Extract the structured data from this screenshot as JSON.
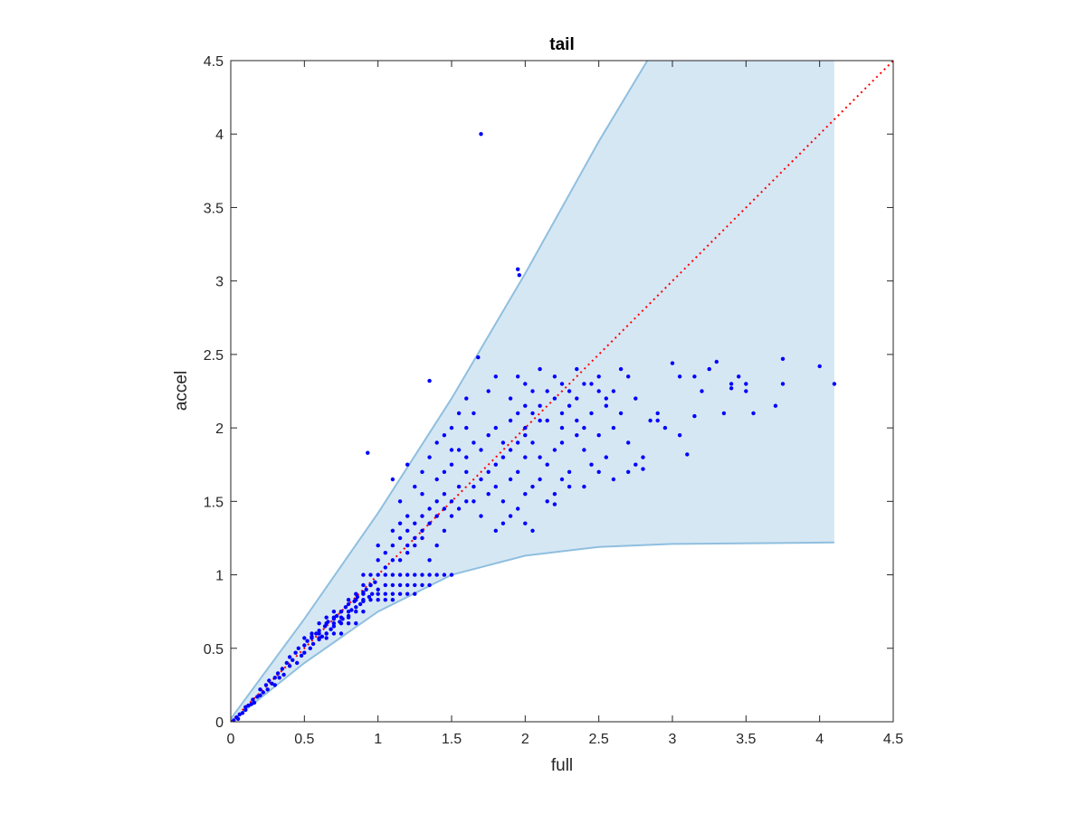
{
  "chart_data": {
    "type": "scatter",
    "title": "tail",
    "xlabel": "full",
    "ylabel": "accel",
    "xlim": [
      0,
      4.5
    ],
    "ylim": [
      0,
      4.5
    ],
    "xticks": [
      "0",
      "0.5",
      "1",
      "1.5",
      "2",
      "2.5",
      "3",
      "3.5",
      "4",
      "4.5"
    ],
    "yticks": [
      "0",
      "0.5",
      "1",
      "1.5",
      "2",
      "2.5",
      "3",
      "3.5",
      "4",
      "4.5"
    ],
    "grid": false,
    "colors": {
      "points": "#0000ff",
      "band_fill": "#d6e7f4",
      "band_edge": "#8fbfdf",
      "reference": "#ff0000",
      "axes": "#262626"
    },
    "reference_line": {
      "style": "dotted",
      "x": [
        0,
        4.5
      ],
      "y": [
        0,
        4.5
      ]
    },
    "band": {
      "upper": [
        [
          0,
          0.02
        ],
        [
          0.5,
          0.7
        ],
        [
          1,
          1.42
        ],
        [
          1.5,
          2.2
        ],
        [
          2,
          3.05
        ],
        [
          2.5,
          3.95
        ],
        [
          2.83,
          4.5
        ],
        [
          4.1,
          4.5
        ]
      ],
      "lower": [
        [
          0,
          0
        ],
        [
          0.5,
          0.4
        ],
        [
          1,
          0.75
        ],
        [
          1.5,
          1.0
        ],
        [
          2,
          1.13
        ],
        [
          2.5,
          1.19
        ],
        [
          3,
          1.21
        ],
        [
          4.1,
          1.22
        ]
      ]
    },
    "points": [
      [
        0.02,
        0.01
      ],
      [
        0.04,
        0.03
      ],
      [
        0.05,
        0.02
      ],
      [
        0.06,
        0.05
      ],
      [
        0.08,
        0.06
      ],
      [
        0.1,
        0.08
      ],
      [
        0.1,
        0.1
      ],
      [
        0.12,
        0.11
      ],
      [
        0.14,
        0.12
      ],
      [
        0.15,
        0.15
      ],
      [
        0.16,
        0.13
      ],
      [
        0.18,
        0.17
      ],
      [
        0.2,
        0.18
      ],
      [
        0.2,
        0.22
      ],
      [
        0.22,
        0.2
      ],
      [
        0.24,
        0.25
      ],
      [
        0.25,
        0.22
      ],
      [
        0.26,
        0.28
      ],
      [
        0.28,
        0.26
      ],
      [
        0.3,
        0.3
      ],
      [
        0.3,
        0.25
      ],
      [
        0.32,
        0.33
      ],
      [
        0.33,
        0.3
      ],
      [
        0.35,
        0.36
      ],
      [
        0.36,
        0.32
      ],
      [
        0.38,
        0.4
      ],
      [
        0.4,
        0.38
      ],
      [
        0.4,
        0.44
      ],
      [
        0.42,
        0.42
      ],
      [
        0.44,
        0.47
      ],
      [
        0.45,
        0.4
      ],
      [
        0.46,
        0.5
      ],
      [
        0.48,
        0.45
      ],
      [
        0.5,
        0.52
      ],
      [
        0.5,
        0.47
      ],
      [
        0.52,
        0.55
      ],
      [
        0.54,
        0.5
      ],
      [
        0.55,
        0.58
      ],
      [
        0.56,
        0.53
      ],
      [
        0.58,
        0.6
      ],
      [
        0.6,
        0.56
      ],
      [
        0.6,
        0.62
      ],
      [
        0.62,
        0.58
      ],
      [
        0.64,
        0.65
      ],
      [
        0.65,
        0.6
      ],
      [
        0.66,
        0.68
      ],
      [
        0.68,
        0.63
      ],
      [
        0.7,
        0.7
      ],
      [
        0.7,
        0.65
      ],
      [
        0.72,
        0.72
      ],
      [
        0.74,
        0.68
      ],
      [
        0.75,
        0.75
      ],
      [
        0.76,
        0.7
      ],
      [
        0.78,
        0.78
      ],
      [
        0.8,
        0.72
      ],
      [
        0.8,
        0.8
      ],
      [
        0.82,
        0.76
      ],
      [
        0.84,
        0.82
      ],
      [
        0.85,
        0.78
      ],
      [
        0.86,
        0.85
      ],
      [
        0.88,
        0.8
      ],
      [
        0.9,
        0.88
      ],
      [
        0.9,
        0.82
      ],
      [
        0.92,
        0.9
      ],
      [
        0.94,
        0.85
      ],
      [
        0.95,
        0.93
      ],
      [
        0.96,
        0.87
      ],
      [
        0.98,
        0.95
      ],
      [
        1.0,
        0.9
      ],
      [
        1.0,
        1.0
      ],
      [
        0.9,
        0.93
      ],
      [
        0.95,
        0.93
      ],
      [
        1.05,
        0.93
      ],
      [
        1.1,
        0.93
      ],
      [
        1.15,
        0.93
      ],
      [
        1.2,
        0.93
      ],
      [
        1.25,
        0.93
      ],
      [
        1.3,
        0.93
      ],
      [
        1.35,
        0.93
      ],
      [
        0.85,
        0.87
      ],
      [
        0.9,
        0.87
      ],
      [
        1.0,
        0.87
      ],
      [
        1.05,
        0.87
      ],
      [
        1.1,
        0.87
      ],
      [
        1.15,
        0.87
      ],
      [
        1.2,
        0.87
      ],
      [
        1.25,
        0.87
      ],
      [
        0.8,
        0.83
      ],
      [
        0.85,
        0.83
      ],
      [
        0.9,
        0.83
      ],
      [
        0.95,
        0.83
      ],
      [
        1.0,
        0.83
      ],
      [
        1.05,
        0.83
      ],
      [
        1.1,
        0.83
      ],
      [
        0.9,
        1.0
      ],
      [
        0.95,
        1.0
      ],
      [
        1.05,
        1.0
      ],
      [
        1.1,
        1.0
      ],
      [
        1.15,
        1.0
      ],
      [
        1.2,
        1.0
      ],
      [
        1.25,
        1.0
      ],
      [
        1.3,
        1.0
      ],
      [
        1.35,
        1.0
      ],
      [
        1.4,
        1.0
      ],
      [
        1.45,
        1.0
      ],
      [
        1.5,
        1.0
      ],
      [
        0.6,
        0.67
      ],
      [
        0.65,
        0.67
      ],
      [
        0.7,
        0.67
      ],
      [
        0.75,
        0.67
      ],
      [
        0.8,
        0.67
      ],
      [
        0.85,
        0.67
      ],
      [
        0.55,
        0.6
      ],
      [
        0.6,
        0.6
      ],
      [
        0.65,
        0.6
      ],
      [
        0.7,
        0.6
      ],
      [
        0.75,
        0.6
      ],
      [
        0.5,
        0.57
      ],
      [
        0.55,
        0.57
      ],
      [
        0.6,
        0.57
      ],
      [
        0.65,
        0.57
      ],
      [
        0.7,
        0.75
      ],
      [
        0.75,
        0.75
      ],
      [
        0.8,
        0.75
      ],
      [
        0.85,
        0.75
      ],
      [
        0.9,
        0.75
      ],
      [
        0.65,
        0.71
      ],
      [
        0.7,
        0.71
      ],
      [
        0.75,
        0.71
      ],
      [
        0.8,
        0.71
      ],
      [
        1.0,
        1.1
      ],
      [
        1.05,
        1.15
      ],
      [
        1.1,
        1.2
      ],
      [
        1.15,
        1.25
      ],
      [
        1.2,
        1.3
      ],
      [
        1.25,
        1.35
      ],
      [
        1.3,
        1.4
      ],
      [
        1.35,
        1.45
      ],
      [
        1.4,
        1.5
      ],
      [
        1.45,
        1.55
      ],
      [
        1.0,
        1.2
      ],
      [
        1.1,
        1.3
      ],
      [
        1.15,
        1.35
      ],
      [
        1.2,
        1.15
      ],
      [
        1.25,
        1.2
      ],
      [
        1.3,
        1.25
      ],
      [
        1.35,
        1.1
      ],
      [
        1.4,
        1.2
      ],
      [
        1.45,
        1.3
      ],
      [
        1.5,
        1.4
      ],
      [
        1.05,
        1.05
      ],
      [
        1.1,
        1.1
      ],
      [
        1.15,
        1.1
      ],
      [
        1.2,
        1.2
      ],
      [
        1.25,
        1.25
      ],
      [
        1.3,
        1.3
      ],
      [
        1.35,
        1.35
      ],
      [
        1.4,
        1.4
      ],
      [
        1.45,
        1.45
      ],
      [
        1.5,
        1.5
      ],
      [
        1.55,
        1.45
      ],
      [
        1.6,
        1.5
      ],
      [
        1.65,
        1.6
      ],
      [
        1.7,
        1.65
      ],
      [
        1.75,
        1.7
      ],
      [
        1.8,
        1.75
      ],
      [
        1.85,
        1.8
      ],
      [
        1.9,
        1.85
      ],
      [
        1.95,
        1.9
      ],
      [
        2.0,
        1.95
      ],
      [
        1.55,
        1.6
      ],
      [
        1.6,
        1.7
      ],
      [
        1.65,
        1.5
      ],
      [
        1.7,
        1.4
      ],
      [
        1.75,
        1.55
      ],
      [
        1.8,
        1.6
      ],
      [
        1.85,
        1.5
      ],
      [
        1.9,
        1.65
      ],
      [
        1.95,
        1.7
      ],
      [
        2.0,
        1.8
      ],
      [
        1.5,
        1.75
      ],
      [
        1.55,
        1.85
      ],
      [
        1.6,
        1.8
      ],
      [
        1.65,
        1.9
      ],
      [
        1.7,
        1.85
      ],
      [
        1.75,
        1.95
      ],
      [
        1.8,
        2.0
      ],
      [
        1.85,
        1.9
      ],
      [
        1.9,
        2.05
      ],
      [
        1.95,
        2.1
      ],
      [
        2.0,
        2.0
      ],
      [
        2.05,
        2.1
      ],
      [
        2.1,
        2.15
      ],
      [
        2.15,
        2.05
      ],
      [
        2.2,
        2.2
      ],
      [
        2.25,
        2.1
      ],
      [
        2.3,
        2.15
      ],
      [
        2.35,
        2.2
      ],
      [
        2.4,
        2.0
      ],
      [
        2.45,
        2.1
      ],
      [
        2.05,
        1.9
      ],
      [
        2.1,
        1.8
      ],
      [
        2.15,
        1.75
      ],
      [
        2.2,
        1.85
      ],
      [
        2.25,
        1.9
      ],
      [
        2.3,
        1.7
      ],
      [
        2.35,
        1.95
      ],
      [
        2.4,
        1.85
      ],
      [
        2.45,
        1.75
      ],
      [
        2.5,
        1.95
      ],
      [
        2.0,
        1.55
      ],
      [
        2.05,
        1.6
      ],
      [
        2.1,
        1.65
      ],
      [
        2.15,
        1.5
      ],
      [
        2.2,
        1.55
      ],
      [
        2.25,
        1.65
      ],
      [
        2.3,
        1.6
      ],
      [
        2.4,
        1.6
      ],
      [
        2.5,
        1.7
      ],
      [
        1.9,
        1.4
      ],
      [
        1.95,
        1.45
      ],
      [
        2.0,
        1.35
      ],
      [
        1.8,
        1.3
      ],
      [
        1.85,
        1.35
      ],
      [
        2.05,
        1.3
      ],
      [
        2.2,
        1.48
      ],
      [
        2.0,
        2.3
      ],
      [
        2.05,
        2.25
      ],
      [
        2.1,
        2.4
      ],
      [
        2.2,
        2.35
      ],
      [
        2.25,
        2.3
      ],
      [
        2.3,
        2.25
      ],
      [
        2.35,
        2.4
      ],
      [
        2.45,
        2.3
      ],
      [
        2.5,
        2.35
      ],
      [
        2.55,
        2.2
      ],
      [
        2.6,
        2.25
      ],
      [
        2.65,
        2.4
      ],
      [
        2.7,
        2.35
      ],
      [
        2.75,
        2.2
      ],
      [
        2.6,
        2.0
      ],
      [
        2.65,
        2.1
      ],
      [
        2.7,
        1.9
      ],
      [
        2.75,
        1.75
      ],
      [
        2.8,
        1.8
      ],
      [
        2.55,
        1.8
      ],
      [
        2.6,
        1.65
      ],
      [
        2.7,
        1.7
      ],
      [
        2.85,
        2.05
      ],
      [
        2.9,
        2.1
      ],
      [
        2.95,
        2.0
      ],
      [
        3.0,
        2.44
      ],
      [
        3.05,
        2.35
      ],
      [
        3.1,
        1.82
      ],
      [
        3.15,
        2.35
      ],
      [
        3.2,
        2.25
      ],
      [
        3.25,
        2.4
      ],
      [
        3.3,
        2.45
      ],
      [
        3.4,
        2.3
      ],
      [
        3.45,
        2.35
      ],
      [
        3.5,
        2.3
      ],
      [
        3.55,
        2.1
      ],
      [
        3.7,
        2.15
      ],
      [
        3.75,
        2.47
      ],
      [
        3.75,
        2.3
      ],
      [
        3.5,
        2.25
      ],
      [
        3.4,
        2.27
      ],
      [
        3.35,
        2.1
      ],
      [
        3.15,
        2.08
      ],
      [
        4.0,
        2.42
      ],
      [
        4.1,
        2.3
      ],
      [
        3.05,
        1.95
      ],
      [
        2.9,
        2.05
      ],
      [
        2.8,
        1.72
      ],
      [
        1.35,
        2.32
      ],
      [
        1.7,
        4.0
      ],
      [
        1.95,
        3.08
      ],
      [
        1.96,
        3.04
      ],
      [
        1.68,
        2.48
      ],
      [
        0.93,
        1.83
      ],
      [
        1.1,
        1.65
      ],
      [
        1.2,
        1.75
      ],
      [
        1.25,
        1.6
      ],
      [
        1.3,
        1.7
      ],
      [
        1.35,
        1.8
      ],
      [
        1.4,
        1.9
      ],
      [
        1.45,
        1.95
      ],
      [
        1.5,
        2.0
      ],
      [
        1.55,
        2.1
      ],
      [
        1.6,
        2.2
      ],
      [
        1.15,
        1.5
      ],
      [
        1.2,
        1.4
      ],
      [
        1.3,
        1.55
      ],
      [
        1.4,
        1.65
      ],
      [
        1.45,
        1.7
      ],
      [
        1.5,
        1.85
      ],
      [
        1.6,
        2.0
      ],
      [
        1.65,
        2.1
      ],
      [
        1.75,
        2.25
      ],
      [
        1.8,
        2.35
      ],
      [
        1.9,
        2.2
      ],
      [
        1.95,
        2.35
      ],
      [
        2.0,
        2.15
      ],
      [
        2.1,
        2.05
      ],
      [
        2.15,
        2.25
      ],
      [
        2.25,
        2.0
      ],
      [
        2.35,
        2.05
      ],
      [
        2.4,
        2.3
      ],
      [
        2.5,
        2.25
      ],
      [
        2.55,
        2.15
      ]
    ]
  }
}
